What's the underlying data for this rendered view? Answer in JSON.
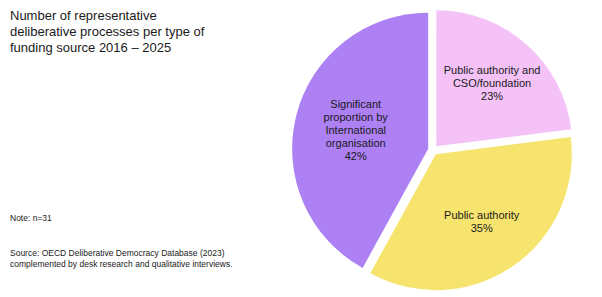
{
  "chart_data": {
    "type": "pie",
    "title": "Number of representative deliberative processes per type of funding source 2016 – 2025",
    "categories": [
      "Public authority and CSO/foundation",
      "Public authority",
      "Significant proportion by International organisation"
    ],
    "values": [
      23,
      35,
      42
    ],
    "value_labels": [
      "23%",
      "35%",
      "42%"
    ],
    "colors": [
      "#f5c2f7",
      "#f7e46f",
      "#ad80f3"
    ],
    "data_labels": true,
    "note": "Note: n=31",
    "source": "Source: OECD Deliberative Democracy Database (2023) complemented by desk research and qualitative interviews."
  }
}
